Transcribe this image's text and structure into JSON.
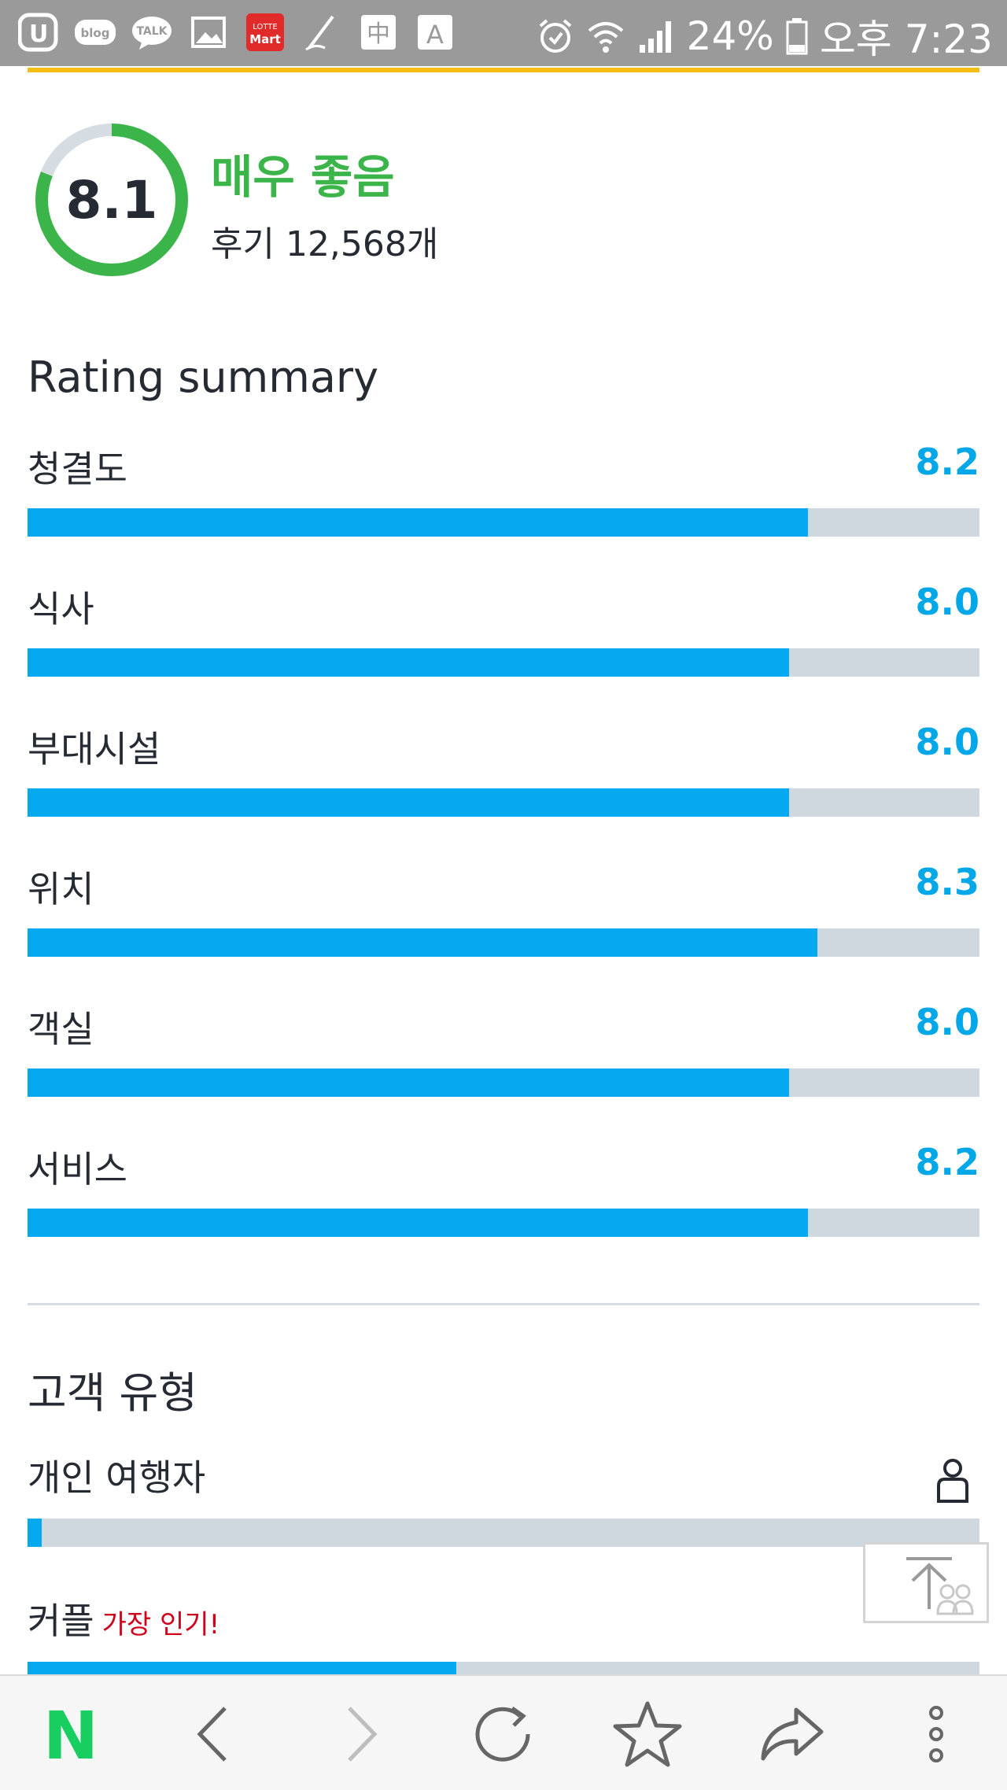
{
  "status_bar": {
    "left_icons": [
      "u-plus-icon",
      "blog-icon",
      "talk-icon",
      "gallery-icon",
      "lotte-mart-icon",
      "pen-icon",
      "chinese-char-icon",
      "font-a-icon"
    ],
    "blog_label": "blog",
    "talk_label": "TALK",
    "lotte_label_top": "LOTTE",
    "lotte_label_bottom": "Mart",
    "chinese_label": "中",
    "font_label": "A",
    "battery_percent": "24%",
    "time": "오후 7:23"
  },
  "header": {
    "score": "8.1",
    "score_value": 8.1,
    "score_max": 10,
    "verdict": "매우 좋음",
    "review_count": "후기 12,568개",
    "colors": {
      "ring": "#3bb54a",
      "ring_track": "#d5dde2",
      "verdict": "#3bb54a",
      "accent_line": "#f5be14"
    }
  },
  "rating_summary": {
    "title": "Rating summary",
    "max": 10,
    "items": [
      {
        "label": "청결도",
        "value": "8.2",
        "score": 8.2
      },
      {
        "label": "식사",
        "value": "8.0",
        "score": 8.0
      },
      {
        "label": "부대시설",
        "value": "8.0",
        "score": 8.0
      },
      {
        "label": "위치",
        "value": "8.3",
        "score": 8.3
      },
      {
        "label": "객실",
        "value": "8.0",
        "score": 8.0
      },
      {
        "label": "서비스",
        "value": "8.2",
        "score": 8.2
      }
    ],
    "colors": {
      "bar": "#04a9ef",
      "track": "#cfd8de",
      "value": "#02a7e8"
    }
  },
  "traveler_types": {
    "title": "고객 유형",
    "items": [
      {
        "label": "개인 여행자",
        "badge": "",
        "icon": "person-icon",
        "fraction": 0.015
      },
      {
        "label": "커플",
        "badge": "가장 인기!",
        "icon": "",
        "fraction": 0.45
      }
    ]
  },
  "scroll_top": {
    "icon": "scroll-to-top-icon"
  },
  "bottom_nav": {
    "items": [
      "naver-icon",
      "back-icon",
      "forward-icon",
      "refresh-icon",
      "bookmark-star-icon",
      "share-icon",
      "more-icon"
    ],
    "naver_letter": "N",
    "naver_color": "#19ce60"
  }
}
